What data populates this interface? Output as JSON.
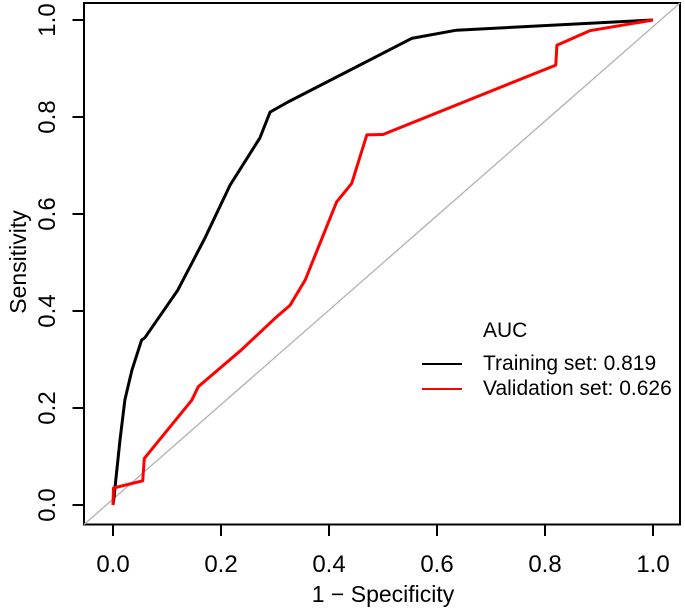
{
  "figure": {
    "background": "#ffffff",
    "frame_color": "#000000"
  },
  "chart_data": {
    "type": "line",
    "subtype": "roc-curve",
    "xlabel": "1 − Specificity",
    "ylabel": "Sensitivity",
    "xlim": [
      0,
      1
    ],
    "ylim": [
      0,
      1
    ],
    "grid": false,
    "x_tick_values": [
      0.0,
      0.2,
      0.4,
      0.6,
      0.8,
      1.0
    ],
    "x_tick_labels": [
      "0.0",
      "0.2",
      "0.4",
      "0.6",
      "0.8",
      "1.0"
    ],
    "y_tick_values": [
      0.0,
      0.2,
      0.4,
      0.6,
      0.8,
      1.0
    ],
    "y_tick_labels": [
      "0.0",
      "0.2",
      "0.4",
      "0.6",
      "0.8",
      "1.0"
    ],
    "legend": {
      "title": "AUC",
      "position": "right-center",
      "entries": [
        {
          "label": "Training set: 0.819",
          "color": "#000000"
        },
        {
          "label": "Validation set: 0.626",
          "color": "#ff0000"
        }
      ]
    },
    "series": [
      {
        "name": "Training set",
        "auc": 0.819,
        "color": "#000000",
        "role": "curve",
        "points": [
          [
            0.0,
            0.0
          ],
          [
            0.002,
            0.017
          ],
          [
            0.005,
            0.05
          ],
          [
            0.013,
            0.134
          ],
          [
            0.022,
            0.217
          ],
          [
            0.035,
            0.278
          ],
          [
            0.053,
            0.34
          ],
          [
            0.059,
            0.345
          ],
          [
            0.12,
            0.443
          ],
          [
            0.17,
            0.55
          ],
          [
            0.217,
            0.66
          ],
          [
            0.272,
            0.757
          ],
          [
            0.291,
            0.81
          ],
          [
            0.324,
            0.831
          ],
          [
            0.553,
            0.962
          ],
          [
            0.636,
            0.979
          ],
          [
            1.0,
            1.0
          ]
        ]
      },
      {
        "name": "Validation set",
        "auc": 0.626,
        "color": "#ff0000",
        "role": "curve",
        "points": [
          [
            0.0,
            0.0
          ],
          [
            0.001,
            0.035
          ],
          [
            0.055,
            0.05
          ],
          [
            0.058,
            0.096
          ],
          [
            0.146,
            0.216
          ],
          [
            0.158,
            0.244
          ],
          [
            0.238,
            0.32
          ],
          [
            0.3,
            0.385
          ],
          [
            0.328,
            0.412
          ],
          [
            0.356,
            0.464
          ],
          [
            0.414,
            0.625
          ],
          [
            0.442,
            0.663
          ],
          [
            0.47,
            0.763
          ],
          [
            0.5,
            0.764
          ],
          [
            0.82,
            0.907
          ],
          [
            0.822,
            0.948
          ],
          [
            0.883,
            0.978
          ],
          [
            1.0,
            1.0
          ]
        ]
      },
      {
        "name": "reference",
        "color": "#b3b3b3",
        "role": "reference-diagonal",
        "points": [
          [
            0.0,
            0.0
          ],
          [
            1.0,
            1.0
          ]
        ]
      }
    ]
  }
}
